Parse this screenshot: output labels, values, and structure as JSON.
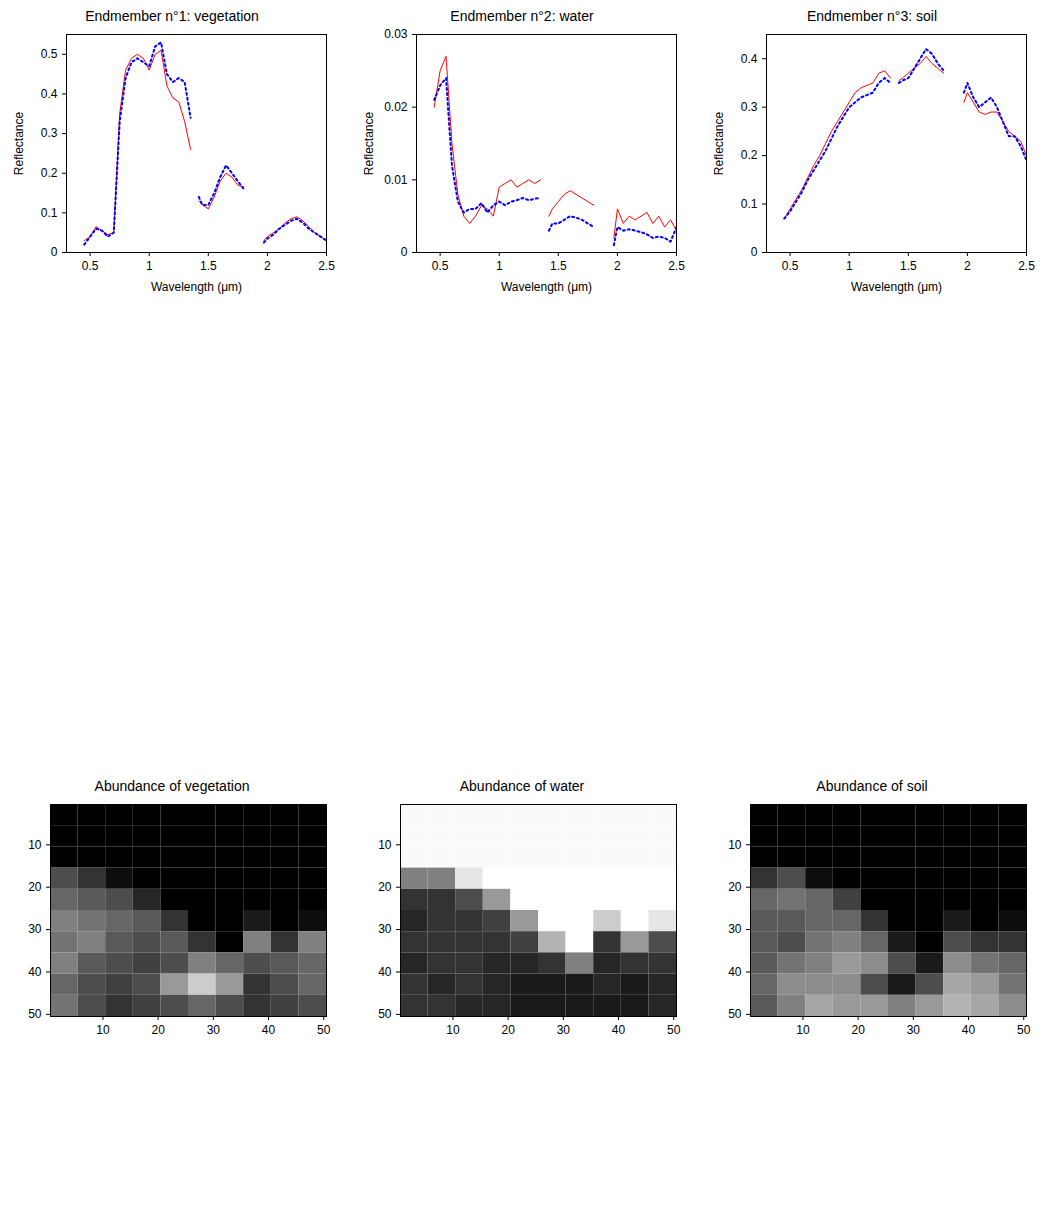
{
  "chart_data": [
    {
      "type": "line",
      "title": "Endmember n°1: vegetation",
      "x_label": "Wavelength (μm)",
      "y_label": "Reflectance",
      "x": [
        0.45,
        0.5,
        0.55,
        0.6,
        0.65,
        0.7,
        0.75,
        0.8,
        0.85,
        0.9,
        0.95,
        1.0,
        1.05,
        1.1,
        1.15,
        1.2,
        1.25,
        1.3,
        1.35,
        1.38,
        1.42,
        1.45,
        1.5,
        1.55,
        1.6,
        1.65,
        1.7,
        1.75,
        1.8,
        1.9,
        1.97,
        2.0,
        2.05,
        2.1,
        2.15,
        2.2,
        2.25,
        2.3,
        2.35,
        2.4,
        2.45,
        2.5
      ],
      "series": [
        {
          "color": "#ff0000",
          "line_style": "solid",
          "values": [
            0.03,
            0.04,
            0.065,
            0.055,
            0.045,
            0.05,
            0.35,
            0.46,
            0.49,
            0.5,
            0.49,
            0.46,
            0.5,
            0.51,
            0.42,
            0.39,
            0.38,
            0.33,
            0.26,
            null,
            0.13,
            0.12,
            0.11,
            0.14,
            0.18,
            0.2,
            0.19,
            0.17,
            0.165,
            null,
            0.03,
            0.04,
            0.05,
            0.06,
            0.075,
            0.085,
            0.09,
            0.08,
            0.065,
            0.05,
            0.04,
            0.03
          ]
        },
        {
          "color": "#0000ff",
          "line_style": "dotted",
          "values": [
            0.02,
            0.04,
            0.06,
            0.055,
            0.04,
            0.05,
            0.33,
            0.44,
            0.48,
            0.49,
            0.48,
            0.47,
            0.52,
            0.53,
            0.45,
            0.43,
            0.44,
            0.43,
            0.34,
            null,
            0.14,
            0.12,
            0.12,
            0.15,
            0.19,
            0.22,
            0.2,
            0.18,
            0.16,
            null,
            0.025,
            0.035,
            0.045,
            0.06,
            0.07,
            0.08,
            0.085,
            0.075,
            0.06,
            0.05,
            0.04,
            0.03
          ]
        }
      ],
      "xlim": [
        0.3,
        2.5
      ],
      "xticks": [
        0.5,
        1,
        1.5,
        2,
        2.5
      ],
      "ylim": [
        0,
        0.55
      ],
      "yticks": [
        0,
        0.1,
        0.2,
        0.3,
        0.4,
        0.5
      ]
    },
    {
      "type": "line",
      "title": "Endmember n°2: water",
      "x_label": "Wavelength (μm)",
      "y_label": "Reflectance",
      "x": [
        0.45,
        0.5,
        0.55,
        0.6,
        0.65,
        0.7,
        0.75,
        0.8,
        0.85,
        0.9,
        0.95,
        1.0,
        1.05,
        1.1,
        1.15,
        1.2,
        1.25,
        1.3,
        1.35,
        1.38,
        1.42,
        1.45,
        1.5,
        1.55,
        1.6,
        1.65,
        1.7,
        1.75,
        1.8,
        1.9,
        1.97,
        2.0,
        2.05,
        2.1,
        2.15,
        2.2,
        2.25,
        2.3,
        2.35,
        2.4,
        2.45,
        2.5
      ],
      "series": [
        {
          "color": "#ff0000",
          "line_style": "solid",
          "values": [
            0.02,
            0.025,
            0.027,
            0.015,
            0.008,
            0.005,
            0.004,
            0.005,
            0.0065,
            0.006,
            0.005,
            0.009,
            0.0095,
            0.01,
            0.009,
            0.0095,
            0.01,
            0.0095,
            0.01,
            null,
            0.005,
            0.006,
            0.007,
            0.008,
            0.0085,
            0.008,
            0.0075,
            0.007,
            0.0065,
            null,
            0.002,
            0.006,
            0.004,
            0.005,
            0.0045,
            0.005,
            0.0055,
            0.004,
            0.005,
            0.0035,
            0.0045,
            0.003
          ]
        },
        {
          "color": "#0000ff",
          "line_style": "dotted",
          "values": [
            0.021,
            0.023,
            0.024,
            0.012,
            0.007,
            0.0055,
            0.006,
            0.006,
            0.0068,
            0.0055,
            0.0065,
            0.007,
            0.0065,
            0.007,
            0.0072,
            0.0075,
            0.0072,
            0.0074,
            0.0075,
            null,
            0.003,
            0.004,
            0.004,
            0.0045,
            0.005,
            0.0048,
            0.0045,
            0.004,
            0.0035,
            null,
            0.001,
            0.0035,
            0.003,
            0.0032,
            0.003,
            0.0028,
            0.0025,
            0.002,
            0.0022,
            0.002,
            0.0015,
            0.0035
          ]
        }
      ],
      "xlim": [
        0.3,
        2.5
      ],
      "xticks": [
        0.5,
        1,
        1.5,
        2,
        2.5
      ],
      "ylim": [
        0,
        0.03
      ],
      "yticks": [
        0,
        0.01,
        0.02,
        0.03
      ]
    },
    {
      "type": "line",
      "title": "Endmember n°3: soil",
      "x_label": "Wavelength (μm)",
      "y_label": "Reflectance",
      "x": [
        0.45,
        0.5,
        0.55,
        0.6,
        0.65,
        0.7,
        0.75,
        0.8,
        0.85,
        0.9,
        0.95,
        1.0,
        1.05,
        1.1,
        1.15,
        1.2,
        1.25,
        1.3,
        1.35,
        1.38,
        1.42,
        1.45,
        1.5,
        1.55,
        1.6,
        1.65,
        1.7,
        1.75,
        1.8,
        1.9,
        1.97,
        2.0,
        2.05,
        2.1,
        2.15,
        2.2,
        2.25,
        2.3,
        2.35,
        2.4,
        2.45,
        2.5
      ],
      "series": [
        {
          "color": "#ff0000",
          "line_style": "solid",
          "values": [
            0.07,
            0.09,
            0.11,
            0.13,
            0.155,
            0.18,
            0.2,
            0.225,
            0.25,
            0.27,
            0.29,
            0.31,
            0.33,
            0.34,
            0.345,
            0.35,
            0.37,
            0.375,
            0.36,
            null,
            0.355,
            0.36,
            0.37,
            0.38,
            0.39,
            0.405,
            0.39,
            0.38,
            0.37,
            null,
            0.31,
            0.33,
            0.31,
            0.29,
            0.285,
            0.29,
            0.29,
            0.27,
            0.25,
            0.24,
            0.23,
            0.2
          ]
        },
        {
          "color": "#0000ff",
          "line_style": "dotted",
          "values": [
            0.07,
            0.085,
            0.105,
            0.125,
            0.15,
            0.17,
            0.19,
            0.21,
            0.235,
            0.26,
            0.28,
            0.3,
            0.31,
            0.32,
            0.325,
            0.33,
            0.35,
            0.36,
            0.35,
            null,
            0.35,
            0.355,
            0.36,
            0.38,
            0.4,
            0.42,
            0.41,
            0.39,
            0.375,
            null,
            0.33,
            0.35,
            0.32,
            0.3,
            0.31,
            0.32,
            0.3,
            0.27,
            0.24,
            0.24,
            0.22,
            0.19
          ]
        }
      ],
      "xlim": [
        0.3,
        2.5
      ],
      "xticks": [
        0.5,
        1,
        1.5,
        2,
        2.5
      ],
      "ylim": [
        0,
        0.45
      ],
      "yticks": [
        0,
        0.1,
        0.2,
        0.3,
        0.4
      ]
    },
    {
      "type": "heatmap",
      "title": "Abundance of vegetation",
      "x_edges": [
        0.5,
        5.5,
        10.5,
        15.5,
        20.5,
        25.5,
        30.5,
        35.5,
        40.5,
        45.5,
        50.5
      ],
      "y_edges": [
        0.5,
        5.5,
        10.5,
        15.5,
        20.5,
        25.5,
        30.5,
        35.5,
        40.5,
        45.5,
        50.5
      ],
      "cells": [
        [
          0,
          0,
          0,
          0,
          0,
          0,
          0,
          0,
          0,
          0
        ],
        [
          0,
          0,
          0,
          0,
          0,
          0,
          0,
          0,
          0,
          0
        ],
        [
          0,
          0,
          0,
          0,
          0,
          0,
          0,
          0,
          0,
          0
        ],
        [
          0.3,
          0.2,
          0.05,
          0,
          0,
          0,
          0,
          0,
          0,
          0
        ],
        [
          0.4,
          0.35,
          0.3,
          0.15,
          0,
          0,
          0,
          0,
          0,
          0
        ],
        [
          0.5,
          0.45,
          0.4,
          0.35,
          0.2,
          0,
          0,
          0.1,
          0,
          0.05
        ],
        [
          0.45,
          0.5,
          0.35,
          0.3,
          0.35,
          0.2,
          0,
          0.5,
          0.2,
          0.5
        ],
        [
          0.5,
          0.35,
          0.3,
          0.25,
          0.3,
          0.5,
          0.4,
          0.3,
          0.35,
          0.4
        ],
        [
          0.4,
          0.3,
          0.25,
          0.3,
          0.6,
          0.8,
          0.6,
          0.2,
          0.3,
          0.4
        ],
        [
          0.45,
          0.3,
          0.2,
          0.25,
          0.3,
          0.4,
          0.3,
          0.2,
          0.25,
          0.3
        ]
      ],
      "color_range": [
        0,
        1
      ],
      "xlim": [
        0.5,
        50.5
      ],
      "xticks": [
        10,
        20,
        30,
        40,
        50
      ],
      "ylim": [
        0.5,
        50.5
      ],
      "yticks": [
        10,
        20,
        30,
        40,
        50
      ]
    },
    {
      "type": "heatmap",
      "title": "Abundance of water",
      "x_edges": [
        0.5,
        5.5,
        10.5,
        15.5,
        20.5,
        25.5,
        30.5,
        35.5,
        40.5,
        45.5,
        50.5
      ],
      "y_edges": [
        0.5,
        5.5,
        10.5,
        15.5,
        20.5,
        25.5,
        30.5,
        35.5,
        40.5,
        45.5,
        50.5
      ],
      "cells": [
        [
          0.98,
          0.98,
          0.98,
          0.98,
          0.98,
          0.98,
          0.98,
          0.98,
          0.98,
          0.98
        ],
        [
          0.98,
          0.98,
          0.98,
          0.98,
          0.98,
          0.98,
          0.98,
          0.98,
          0.98,
          0.98
        ],
        [
          0.98,
          0.98,
          0.98,
          0.98,
          0.98,
          0.98,
          0.98,
          0.98,
          0.98,
          0.98
        ],
        [
          0.5,
          0.5,
          0.9,
          1,
          1,
          1,
          1,
          1,
          1,
          1
        ],
        [
          0.2,
          0.2,
          0.3,
          0.6,
          1,
          1,
          1,
          1,
          1,
          1
        ],
        [
          0.15,
          0.2,
          0.2,
          0.25,
          0.6,
          1,
          1,
          0.8,
          1,
          0.9
        ],
        [
          0.2,
          0.2,
          0.2,
          0.2,
          0.25,
          0.7,
          1,
          0.2,
          0.6,
          0.3
        ],
        [
          0.15,
          0.2,
          0.2,
          0.15,
          0.15,
          0.2,
          0.5,
          0.15,
          0.2,
          0.2
        ],
        [
          0.2,
          0.15,
          0.2,
          0.15,
          0.1,
          0.1,
          0.1,
          0.15,
          0.1,
          0.15
        ],
        [
          0.2,
          0.2,
          0.15,
          0.15,
          0.1,
          0.1,
          0.1,
          0.1,
          0.1,
          0.15
        ]
      ],
      "color_range": [
        0,
        1
      ],
      "xlim": [
        0.5,
        50.5
      ],
      "xticks": [
        10,
        20,
        30,
        40,
        50
      ],
      "ylim": [
        0.5,
        50.5
      ],
      "yticks": [
        10,
        20,
        30,
        40,
        50
      ]
    },
    {
      "type": "heatmap",
      "title": "Abundance of soil",
      "x_edges": [
        0.5,
        5.5,
        10.5,
        15.5,
        20.5,
        25.5,
        30.5,
        35.5,
        40.5,
        45.5,
        50.5
      ],
      "y_edges": [
        0.5,
        5.5,
        10.5,
        15.5,
        20.5,
        25.5,
        30.5,
        35.5,
        40.5,
        45.5,
        50.5
      ],
      "cells": [
        [
          0,
          0,
          0,
          0,
          0,
          0,
          0,
          0,
          0,
          0
        ],
        [
          0,
          0,
          0,
          0,
          0,
          0,
          0,
          0,
          0,
          0
        ],
        [
          0,
          0,
          0,
          0,
          0,
          0,
          0,
          0,
          0,
          0
        ],
        [
          0.2,
          0.3,
          0.05,
          0,
          0,
          0,
          0,
          0,
          0,
          0
        ],
        [
          0.4,
          0.45,
          0.4,
          0.25,
          0,
          0,
          0,
          0,
          0,
          0
        ],
        [
          0.35,
          0.35,
          0.4,
          0.4,
          0.2,
          0,
          0,
          0.1,
          0,
          0.05
        ],
        [
          0.35,
          0.3,
          0.45,
          0.5,
          0.4,
          0.1,
          0,
          0.3,
          0.2,
          0.2
        ],
        [
          0.35,
          0.45,
          0.5,
          0.6,
          0.55,
          0.3,
          0.1,
          0.55,
          0.45,
          0.4
        ],
        [
          0.4,
          0.55,
          0.55,
          0.55,
          0.3,
          0.1,
          0.3,
          0.65,
          0.6,
          0.45
        ],
        [
          0.35,
          0.5,
          0.65,
          0.6,
          0.6,
          0.5,
          0.6,
          0.7,
          0.65,
          0.55
        ]
      ],
      "color_range": [
        0,
        1
      ],
      "xlim": [
        0.5,
        50.5
      ],
      "xticks": [
        10,
        20,
        30,
        40,
        50
      ],
      "ylim": [
        0.5,
        50.5
      ],
      "yticks": [
        10,
        20,
        30,
        40,
        50
      ]
    }
  ]
}
